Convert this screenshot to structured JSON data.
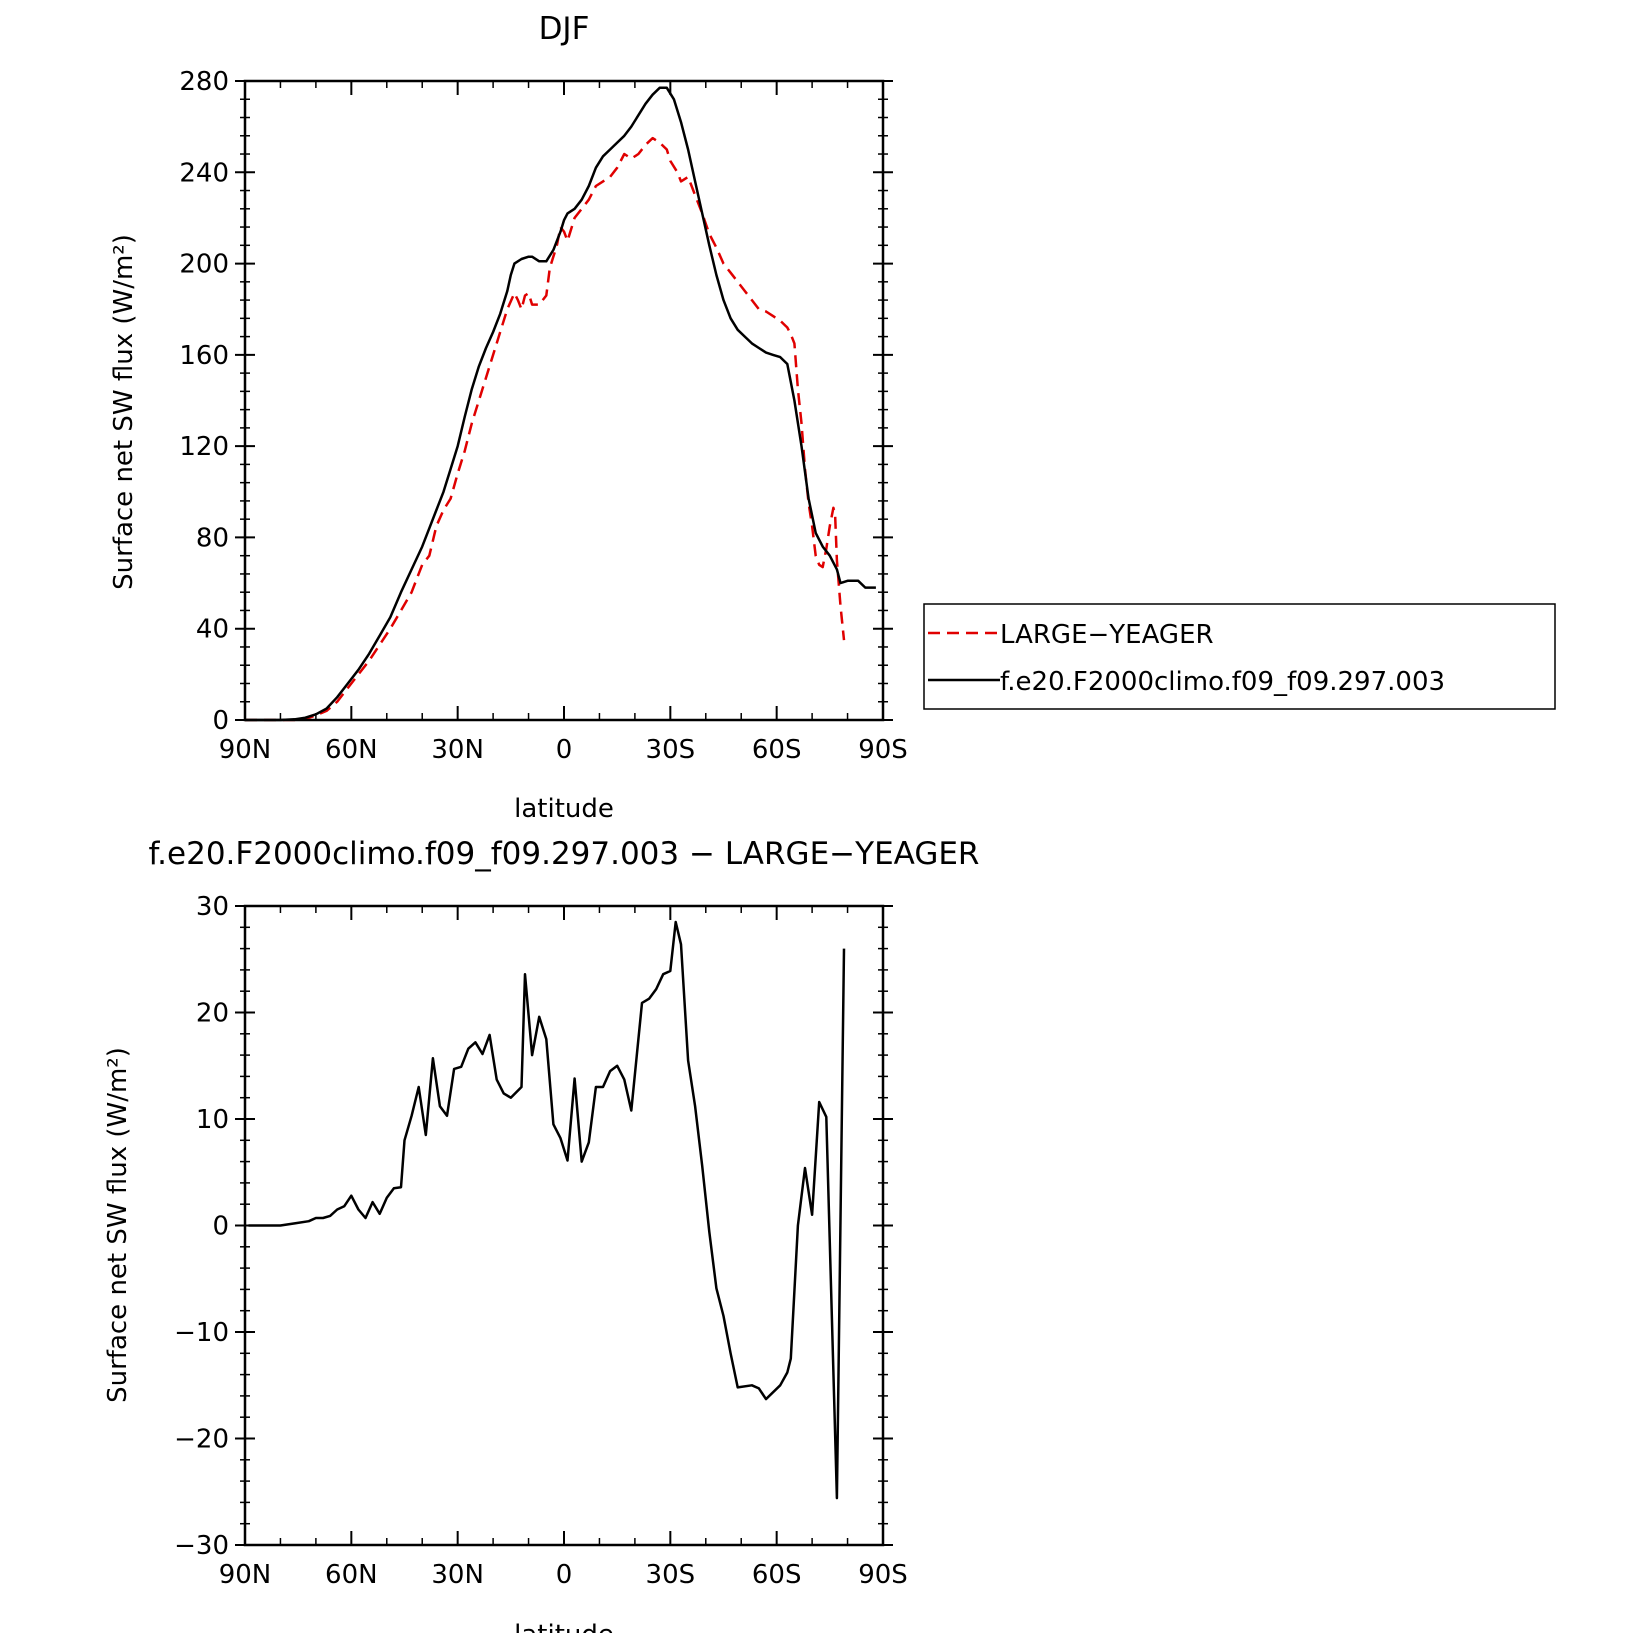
{
  "chart_data": [
    {
      "type": "line",
      "title": "DJF",
      "xlabel": "latitude",
      "ylabel": "Surface net SW flux (W/m²)",
      "xlim": [
        90,
        -90
      ],
      "ylim": [
        0,
        280
      ],
      "x_ticks": [
        90,
        60,
        30,
        0,
        -30,
        -60,
        -90
      ],
      "x_tick_labels": [
        "90N",
        "60N",
        "30N",
        "0",
        "30S",
        "60S",
        "90S"
      ],
      "y_ticks": [
        0,
        40,
        80,
        120,
        160,
        200,
        240,
        280
      ],
      "y_tick_labels": [
        "0",
        "40",
        "80",
        "120",
        "160",
        "200",
        "240",
        "280"
      ],
      "legend_position": "right",
      "series": [
        {
          "name": "LARGE−YEAGER",
          "color": "#e00000",
          "dash": "dashed",
          "points": [
            [
              90,
              0
            ],
            [
              85,
              0
            ],
            [
              80,
              0
            ],
            [
              76,
              0
            ],
            [
              73,
              0.5
            ],
            [
              70,
              2
            ],
            [
              67,
              4
            ],
            [
              64,
              8
            ],
            [
              61,
              14
            ],
            [
              58,
              20
            ],
            [
              55,
              26
            ],
            [
              52,
              33
            ],
            [
              49,
              40
            ],
            [
              46,
              48
            ],
            [
              43,
              56
            ],
            [
              40,
              68
            ],
            [
              38,
              72
            ],
            [
              36,
              85
            ],
            [
              34,
              92
            ],
            [
              32,
              97
            ],
            [
              30,
              108
            ],
            [
              28,
              118
            ],
            [
              26,
              130
            ],
            [
              24,
              140
            ],
            [
              22,
              150
            ],
            [
              20,
              160
            ],
            [
              18,
              170
            ],
            [
              16,
              180
            ],
            [
              14,
              187
            ],
            [
              13,
              184
            ],
            [
              12,
              180
            ],
            [
              11,
              186
            ],
            [
              10,
              187
            ],
            [
              9,
              182
            ],
            [
              7,
              182
            ],
            [
              5,
              186
            ],
            [
              4,
              198
            ],
            [
              2,
              208
            ],
            [
              1,
              216
            ],
            [
              0,
              214
            ],
            [
              -1,
              210
            ],
            [
              -2,
              215
            ],
            [
              -3,
              220
            ],
            [
              -5,
              224
            ],
            [
              -7,
              228
            ],
            [
              -9,
              234
            ],
            [
              -11,
              236
            ],
            [
              -13,
              238
            ],
            [
              -15,
              242
            ],
            [
              -17,
              248
            ],
            [
              -19,
              246
            ],
            [
              -21,
              248
            ],
            [
              -23,
              252
            ],
            [
              -25,
              255
            ],
            [
              -27,
              253
            ],
            [
              -29,
              250
            ],
            [
              -30,
              245
            ],
            [
              -32,
              240
            ],
            [
              -33,
              236
            ],
            [
              -35,
              238
            ],
            [
              -37,
              230
            ],
            [
              -39,
              222
            ],
            [
              -41,
              213
            ],
            [
              -43,
              207
            ],
            [
              -45,
              200
            ],
            [
              -47,
              196
            ],
            [
              -49,
              192
            ],
            [
              -51,
              188
            ],
            [
              -53,
              184
            ],
            [
              -55,
              180
            ],
            [
              -57,
              179
            ],
            [
              -59,
              177
            ],
            [
              -61,
              175
            ],
            [
              -63,
              172
            ],
            [
              -64,
              169
            ],
            [
              -65,
              165
            ],
            [
              -66,
              145
            ],
            [
              -67,
              130
            ],
            [
              -68,
              110
            ],
            [
              -69,
              95
            ],
            [
              -70,
              85
            ],
            [
              -71,
              72
            ],
            [
              -72,
              68
            ],
            [
              -73,
              67
            ],
            [
              -74,
              75
            ],
            [
              -75,
              85
            ],
            [
              -76,
              93
            ],
            [
              -76.5,
              90
            ],
            [
              -77,
              70
            ],
            [
              -78,
              50
            ],
            [
              -79,
              35
            ]
          ]
        },
        {
          "name": "f.e20.F2000climo.f09_f09.297.003",
          "color": "#000000",
          "dash": "solid",
          "points": [
            [
              90,
              0
            ],
            [
              85,
              0
            ],
            [
              80,
              0
            ],
            [
              76,
              0.3
            ],
            [
              73,
              1
            ],
            [
              70,
              2.5
            ],
            [
              67,
              5
            ],
            [
              64,
              10
            ],
            [
              61,
              16
            ],
            [
              58,
              22
            ],
            [
              55,
              29
            ],
            [
              52,
              37
            ],
            [
              49,
              45
            ],
            [
              46,
              56
            ],
            [
              43,
              66
            ],
            [
              40,
              76
            ],
            [
              38,
              84
            ],
            [
              36,
              92
            ],
            [
              34,
              100
            ],
            [
              32,
              110
            ],
            [
              30,
              120
            ],
            [
              28,
              133
            ],
            [
              26,
              145
            ],
            [
              24,
              155
            ],
            [
              22,
              163
            ],
            [
              20,
              170
            ],
            [
              18,
              178
            ],
            [
              16,
              188
            ],
            [
              15,
              195
            ],
            [
              14,
              200
            ],
            [
              12,
              202
            ],
            [
              10,
              203
            ],
            [
              9,
              203
            ],
            [
              7,
              201
            ],
            [
              5,
              201
            ],
            [
              3,
              206
            ],
            [
              1,
              214
            ],
            [
              0,
              219
            ],
            [
              -1,
              222
            ],
            [
              -3,
              224
            ],
            [
              -5,
              228
            ],
            [
              -7,
              234
            ],
            [
              -9,
              242
            ],
            [
              -11,
              247
            ],
            [
              -13,
              250
            ],
            [
              -15,
              253
            ],
            [
              -17,
              256
            ],
            [
              -19,
              260
            ],
            [
              -21,
              265
            ],
            [
              -23,
              270
            ],
            [
              -25,
              274
            ],
            [
              -27,
              277
            ],
            [
              -29,
              277
            ],
            [
              -31,
              272
            ],
            [
              -33,
              262
            ],
            [
              -35,
              250
            ],
            [
              -37,
              236
            ],
            [
              -39,
              222
            ],
            [
              -41,
              208
            ],
            [
              -43,
              195
            ],
            [
              -45,
              184
            ],
            [
              -47,
              176
            ],
            [
              -49,
              171
            ],
            [
              -51,
              168
            ],
            [
              -53,
              165
            ],
            [
              -55,
              163
            ],
            [
              -57,
              161
            ],
            [
              -59,
              160
            ],
            [
              -61,
              159
            ],
            [
              -63,
              156
            ],
            [
              -65,
              140
            ],
            [
              -67,
              120
            ],
            [
              -69,
              97
            ],
            [
              -71,
              82
            ],
            [
              -73,
              76
            ],
            [
              -75,
              72
            ],
            [
              -77,
              66
            ],
            [
              -78,
              60
            ],
            [
              -80,
              61
            ],
            [
              -83,
              61
            ],
            [
              -85,
              58
            ],
            [
              -88,
              58
            ]
          ]
        }
      ]
    },
    {
      "type": "line",
      "title": "f.e20.F2000climo.f09_f09.297.003 − LARGE−YEAGER",
      "xlabel": "latitude",
      "ylabel": "Surface net SW flux (W/m²)",
      "xlim": [
        90,
        -90
      ],
      "ylim": [
        -30,
        30
      ],
      "x_ticks": [
        90,
        60,
        30,
        0,
        -30,
        -60,
        -90
      ],
      "x_tick_labels": [
        "90N",
        "60N",
        "30N",
        "0",
        "30S",
        "60S",
        "90S"
      ],
      "y_ticks": [
        -30,
        -20,
        -10,
        0,
        10,
        20,
        30
      ],
      "y_tick_labels": [
        "−30",
        "−20",
        "−10",
        "0",
        "10",
        "20",
        "30"
      ],
      "series": [
        {
          "name": "",
          "color": "#000000",
          "dash": "solid",
          "points": [
            [
              89,
              0
            ],
            [
              80,
              0
            ],
            [
              76,
              0.2
            ],
            [
              72,
              0.4
            ],
            [
              70,
              0.7
            ],
            [
              68,
              0.7
            ],
            [
              66,
              0.9
            ],
            [
              64,
              1.5
            ],
            [
              62,
              1.8
            ],
            [
              60,
              2.8
            ],
            [
              58,
              1.5
            ],
            [
              56,
              0.7
            ],
            [
              54,
              2.2
            ],
            [
              52,
              1.1
            ],
            [
              50,
              2.6
            ],
            [
              48,
              3.5
            ],
            [
              46,
              3.6
            ],
            [
              45,
              8
            ],
            [
              43,
              10.3
            ],
            [
              41,
              13
            ],
            [
              39,
              8.5
            ],
            [
              37,
              15.7
            ],
            [
              35,
              11.2
            ],
            [
              33,
              10.3
            ],
            [
              31,
              14.7
            ],
            [
              29,
              14.9
            ],
            [
              27,
              16.6
            ],
            [
              25,
              17.2
            ],
            [
              23,
              16.1
            ],
            [
              21,
              17.9
            ],
            [
              19,
              13.7
            ],
            [
              17,
              12.4
            ],
            [
              15,
              12
            ],
            [
              12,
              13
            ],
            [
              11,
              23.6
            ],
            [
              9,
              16
            ],
            [
              7,
              19.6
            ],
            [
              5,
              17.5
            ],
            [
              3,
              9.5
            ],
            [
              1,
              8.2
            ],
            [
              -1,
              6.1
            ],
            [
              -3,
              13.8
            ],
            [
              -5,
              6
            ],
            [
              -7,
              7.8
            ],
            [
              -9,
              13
            ],
            [
              -11,
              13
            ],
            [
              -13,
              14.5
            ],
            [
              -15,
              15
            ],
            [
              -17,
              13.7
            ],
            [
              -19,
              10.8
            ],
            [
              -22,
              20.9
            ],
            [
              -24,
              21.3
            ],
            [
              -26,
              22.2
            ],
            [
              -28,
              23.6
            ],
            [
              -30,
              23.9
            ],
            [
              -31.5,
              28.5
            ],
            [
              -33,
              26.4
            ],
            [
              -35,
              15.5
            ],
            [
              -37,
              11.2
            ],
            [
              -39,
              5.6
            ],
            [
              -41,
              -0.6
            ],
            [
              -43,
              -5.9
            ],
            [
              -45,
              -8.5
            ],
            [
              -47,
              -12
            ],
            [
              -49,
              -15.2
            ],
            [
              -53,
              -15
            ],
            [
              -55,
              -15.3
            ],
            [
              -57,
              -16.3
            ],
            [
              -61,
              -15
            ],
            [
              -63,
              -13.8
            ],
            [
              -64,
              -12.5
            ],
            [
              -66,
              0
            ],
            [
              -68,
              5.4
            ],
            [
              -70,
              1
            ],
            [
              -72,
              11.6
            ],
            [
              -74,
              10.2
            ],
            [
              -77,
              -25.6
            ],
            [
              -79,
              26
            ]
          ]
        }
      ]
    }
  ]
}
